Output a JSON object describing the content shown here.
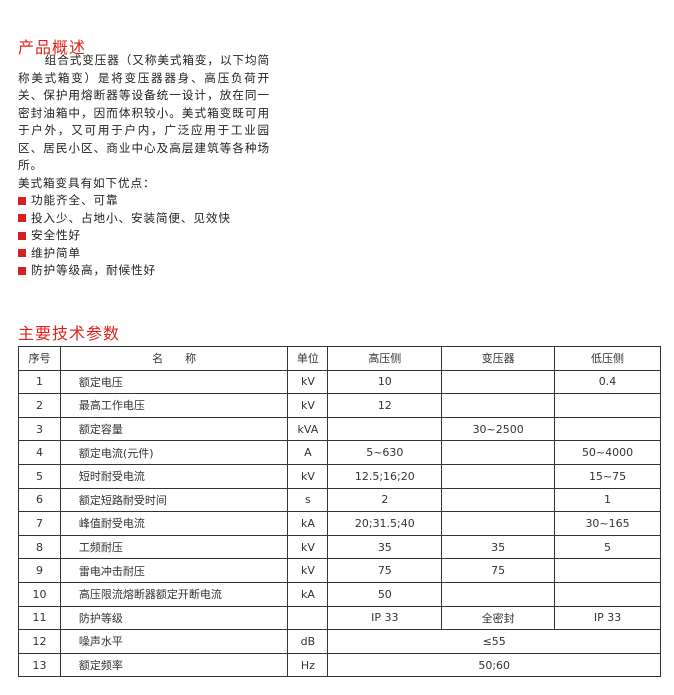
{
  "overview": {
    "title": "产品概述",
    "paragraph": "组合式变压器（又称美式箱变，以下均简称美式箱变）是将变压器器身、高压负荷开关、保护用熔断器等设备统一设计，放在同一密封油箱中，因而体积较小。美式箱变既可用于户外，又可用于户内，广泛应用于工业园区、居民小区、商业中心及高层建筑等各种场所。",
    "lead": "美式箱变具有如下优点：",
    "bullets": [
      "功能齐全、可靠",
      "投入少、占地小、安装简便、见效快",
      "安全性好",
      "维护简单",
      "防护等级高，耐候性好"
    ]
  },
  "specs": {
    "title": "主要技术参数",
    "headers": [
      "序号",
      "名　　称",
      "单位",
      "高压侧",
      "变压器",
      "低压侧"
    ],
    "rows": [
      [
        "1",
        "额定电压",
        "kV",
        "10",
        "",
        "0.4"
      ],
      [
        "2",
        "最高工作电压",
        "kV",
        "12",
        "",
        ""
      ],
      [
        "3",
        "额定容量",
        "kVA",
        "",
        "30~2500",
        ""
      ],
      [
        "4",
        "额定电流(元件)",
        "A",
        "5~630",
        "",
        "50~4000"
      ],
      [
        "5",
        "短时耐受电流",
        "kV",
        "12.5;16;20",
        "",
        "15~75"
      ],
      [
        "6",
        "额定短路耐受时间",
        "s",
        "2",
        "",
        "1"
      ],
      [
        "7",
        "峰值耐受电流",
        "kA",
        "20;31.5;40",
        "",
        "30~165"
      ],
      [
        "8",
        "工频耐压",
        "kV",
        "35",
        "35",
        "5"
      ],
      [
        "9",
        "雷电冲击耐压",
        "kV",
        "75",
        "75",
        ""
      ],
      [
        "10",
        "高压限流熔断器额定开断电流",
        "kA",
        "50",
        "",
        ""
      ],
      [
        "11",
        "防护等级",
        "",
        "IP 33",
        "全密封",
        "IP 33"
      ],
      [
        "12",
        "噪声水平",
        "dB",
        "≤55"
      ],
      [
        "13",
        "额定频率",
        "Hz",
        "50;60"
      ]
    ]
  },
  "colors": {
    "accent": "#e0221c",
    "bullet": "#d42020"
  }
}
